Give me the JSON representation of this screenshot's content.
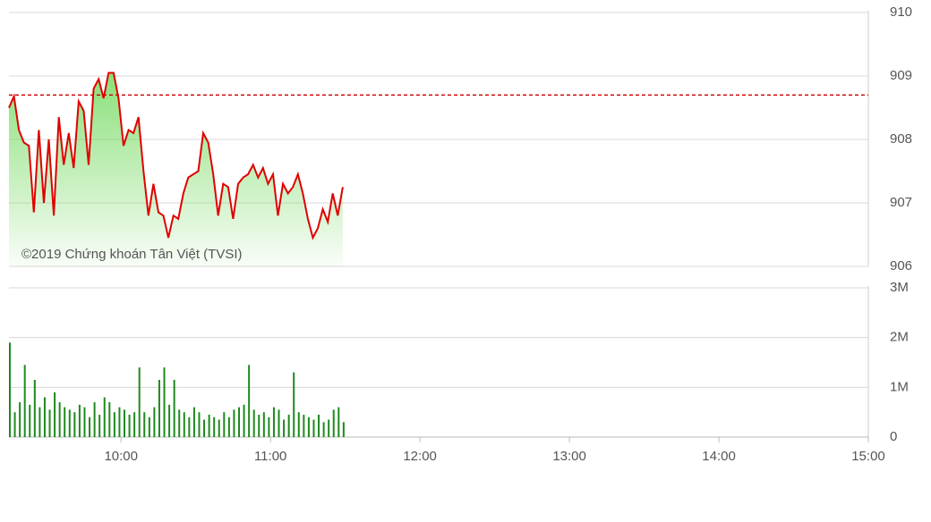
{
  "chart_data": [
    {
      "type": "line",
      "watermark": "©2019 Chứng khoán Tân Việt (TVSI)",
      "color": "#e00000",
      "area_color": "#7ddc6a",
      "reference": 908.7,
      "reference_color": "#cc0000",
      "x": [
        555,
        557,
        559,
        561,
        563,
        565,
        567,
        569,
        571,
        573,
        575,
        577,
        579,
        581,
        583,
        585,
        587,
        589,
        591,
        593,
        595,
        597,
        599,
        601,
        603,
        605,
        607,
        609,
        611,
        613,
        615,
        617,
        619,
        621,
        623,
        625,
        627,
        629,
        631,
        633,
        635,
        637,
        639,
        641,
        643,
        645,
        647,
        649,
        651,
        653,
        655,
        657,
        659,
        661,
        663,
        665,
        667,
        669,
        671,
        673,
        675,
        677,
        679,
        681,
        683,
        685,
        687,
        689
      ],
      "values": [
        908.5,
        908.68,
        908.15,
        907.95,
        907.9,
        906.85,
        908.15,
        907.0,
        908.0,
        906.8,
        908.35,
        907.6,
        908.1,
        907.55,
        908.6,
        908.45,
        907.6,
        908.8,
        908.95,
        908.65,
        909.05,
        909.05,
        908.65,
        907.9,
        908.15,
        908.1,
        908.35,
        907.5,
        906.8,
        907.3,
        906.85,
        906.8,
        906.45,
        906.8,
        906.75,
        907.15,
        907.4,
        907.45,
        907.5,
        908.1,
        907.95,
        907.45,
        906.8,
        907.3,
        907.25,
        906.75,
        907.3,
        907.4,
        907.45,
        907.6,
        907.4,
        907.55,
        907.3,
        907.45,
        906.8,
        907.3,
        907.15,
        907.25,
        907.45,
        907.15,
        906.75,
        906.45,
        906.6,
        906.9,
        906.7,
        907.15,
        906.8,
        907.25
      ],
      "xlim": [
        555,
        900
      ],
      "ylim": [
        906,
        910
      ],
      "yticks": [
        906,
        907,
        908,
        909,
        910
      ],
      "grid": true
    },
    {
      "type": "bar",
      "color": "#1e8a1e",
      "x": [
        555,
        557,
        559,
        561,
        563,
        565,
        567,
        569,
        571,
        573,
        575,
        577,
        579,
        581,
        583,
        585,
        587,
        589,
        591,
        593,
        595,
        597,
        599,
        601,
        603,
        605,
        607,
        609,
        611,
        613,
        615,
        617,
        619,
        621,
        623,
        625,
        627,
        629,
        631,
        633,
        635,
        637,
        639,
        641,
        643,
        645,
        647,
        649,
        651,
        653,
        655,
        657,
        659,
        661,
        663,
        665,
        667,
        669,
        671,
        673,
        675,
        677,
        679,
        681,
        683,
        685,
        687,
        689
      ],
      "values": [
        1900000,
        500000,
        700000,
        1450000,
        650000,
        1150000,
        600000,
        800000,
        550000,
        900000,
        700000,
        600000,
        550000,
        500000,
        650000,
        600000,
        400000,
        700000,
        450000,
        800000,
        700000,
        500000,
        600000,
        550000,
        450000,
        500000,
        1400000,
        500000,
        400000,
        600000,
        1150000,
        1400000,
        650000,
        1150000,
        550000,
        500000,
        400000,
        600000,
        500000,
        350000,
        450000,
        400000,
        350000,
        500000,
        400000,
        550000,
        600000,
        650000,
        1450000,
        550000,
        450000,
        500000,
        400000,
        600000,
        550000,
        350000,
        450000,
        1300000,
        500000,
        450000,
        400000,
        350000,
        450000,
        300000,
        350000,
        550000,
        600000,
        300000
      ],
      "xlim": [
        555,
        900
      ],
      "ylim": [
        0,
        3000000
      ],
      "yticks": [
        0,
        {
          "value": 1000000,
          "label": "1M"
        },
        {
          "value": 2000000,
          "label": "2M"
        },
        {
          "value": 3000000,
          "label": "3M"
        }
      ],
      "xticks": [
        {
          "value": 600,
          "label": "10:00"
        },
        {
          "value": 660,
          "label": "11:00"
        },
        {
          "value": 720,
          "label": "12:00"
        },
        {
          "value": 780,
          "label": "13:00"
        },
        {
          "value": 840,
          "label": "14:00"
        },
        {
          "value": 900,
          "label": "15:00"
        }
      ],
      "grid": true
    }
  ]
}
